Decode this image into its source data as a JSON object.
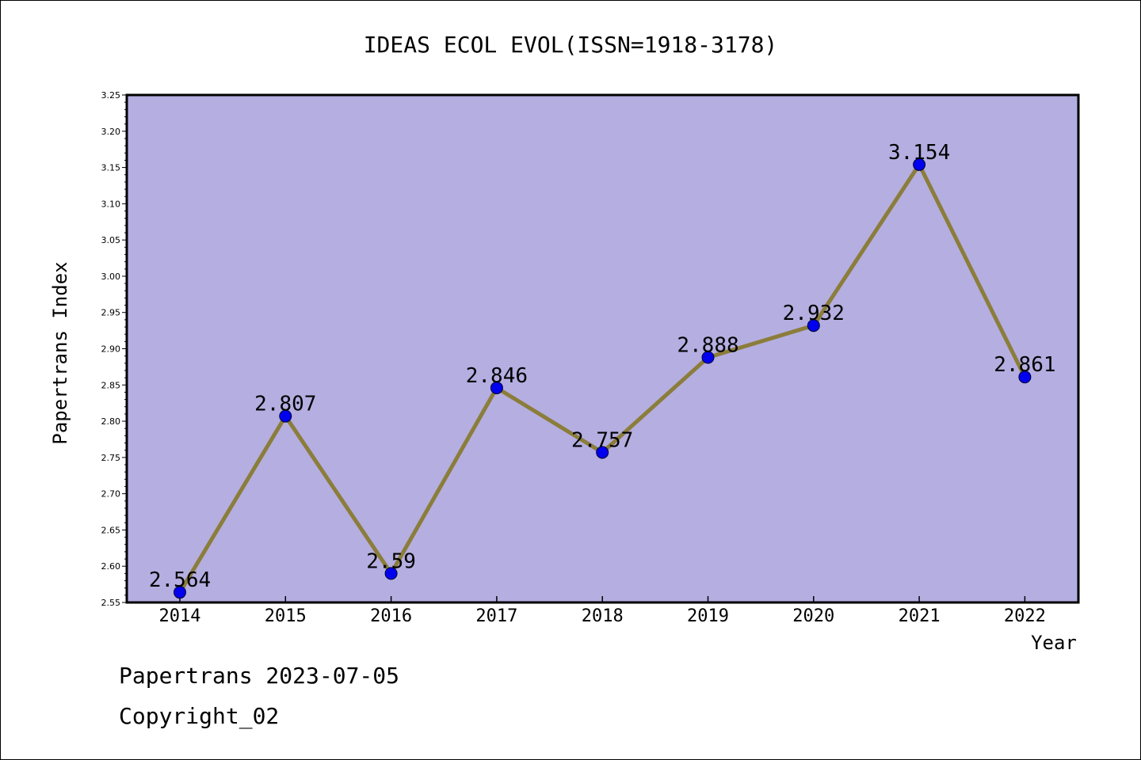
{
  "chart_data": {
    "type": "line",
    "title": "IDEAS ECOL EVOL(ISSN=1918-3178)",
    "xlabel": "Year",
    "ylabel": "Papertrans Index",
    "categories": [
      "2014",
      "2015",
      "2016",
      "2017",
      "2018",
      "2019",
      "2020",
      "2021",
      "2022"
    ],
    "values": [
      2.564,
      2.807,
      2.59,
      2.846,
      2.757,
      2.888,
      2.932,
      3.154,
      2.861
    ],
    "data_labels": [
      "2.564",
      "2.807",
      "2.59",
      "2.846",
      "2.757",
      "2.888",
      "2.932",
      "3.154",
      "2.861"
    ],
    "ylim": [
      2.55,
      3.25
    ],
    "yticks": [
      "2.55",
      "2.60",
      "2.65",
      "2.70",
      "2.75",
      "2.80",
      "2.85",
      "2.90",
      "2.95",
      "3.00",
      "3.05",
      "3.10",
      "3.15",
      "3.20",
      "3.25"
    ],
    "grid": false,
    "colors": {
      "plot_background": "#b4aee1",
      "line": "#8b7d3a",
      "marker": "#0000ee"
    }
  },
  "footer": {
    "line1": "Papertrans 2023-07-05",
    "line2": "Copyright_02"
  }
}
